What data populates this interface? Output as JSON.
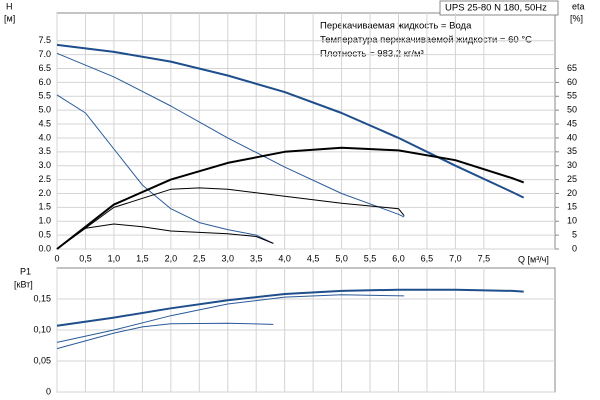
{
  "chart_data": [
    {
      "type": "line",
      "annotations": [
        "UPS 25-80 N 180, 50Hz",
        "Перекачиваемая жидкость = Вода",
        "Температура перекачиваемой жидкости = 60 °C",
        "Плотность = 983.2 кг/м³"
      ],
      "y_label": "H",
      "y_unit": "[м]",
      "y2_label": "eta",
      "y2_unit": "[%]",
      "x_label": "Q [м³/ч]",
      "xlim": [
        0,
        8.75
      ],
      "ylim": [
        0,
        8.5
      ],
      "y2lim": [
        0,
        85
      ],
      "grid": true,
      "xticks": [
        0,
        {
          "value": 0.5,
          "label": "0,5"
        },
        {
          "value": 1,
          "label": "1,0"
        },
        {
          "value": 1.5,
          "label": "1,5"
        },
        {
          "value": 2,
          "label": "2,0"
        },
        {
          "value": 2.5,
          "label": "2,5"
        },
        {
          "value": 3,
          "label": "3,0"
        },
        {
          "value": 3.5,
          "label": "3,5"
        },
        {
          "value": 4,
          "label": "4,0"
        },
        {
          "value": 4.5,
          "label": "4,5"
        },
        {
          "value": 5,
          "label": "5,0"
        },
        {
          "value": 5.5,
          "label": "5,5"
        },
        {
          "value": 6,
          "label": "6,0"
        },
        {
          "value": 6.5,
          "label": "6,5"
        },
        {
          "value": 7,
          "label": "7,0"
        },
        {
          "value": 7.5,
          "label": "7,5"
        }
      ],
      "yticks": [
        {
          "value": 0,
          "label": "0.0"
        },
        0.5,
        {
          "value": 1,
          "label": "1.0"
        },
        1.5,
        {
          "value": 2,
          "label": "2.0"
        },
        2.5,
        {
          "value": 3,
          "label": "3.0"
        },
        3.5,
        {
          "value": 4,
          "label": "4.0"
        },
        4.5,
        {
          "value": 5,
          "label": "5.0"
        },
        5.5,
        {
          "value": 6,
          "label": "6.0"
        },
        6.5,
        {
          "value": 7,
          "label": "7.0"
        },
        7.5
      ],
      "y2ticks": [
        0,
        5,
        10,
        15,
        20,
        25,
        30,
        35,
        40,
        45,
        50,
        55,
        60,
        65
      ],
      "series": [
        {
          "color": "#1f4e8c",
          "width": 2,
          "axis": "y",
          "x": [
            0,
            1,
            2,
            3,
            4,
            5,
            6,
            7,
            8,
            8.2
          ],
          "values": [
            7.35,
            7.1,
            6.75,
            6.25,
            5.65,
            4.9,
            4.0,
            3.0,
            2.05,
            1.85
          ]
        },
        {
          "color": "#2a5a9a",
          "width": 1,
          "axis": "y",
          "x": [
            0,
            1,
            2,
            3,
            4,
            5,
            6,
            6.1
          ],
          "values": [
            7.05,
            6.2,
            5.15,
            4.0,
            2.95,
            2.0,
            1.25,
            1.15
          ]
        },
        {
          "color": "#2a5a9a",
          "width": 1,
          "axis": "y",
          "x": [
            0,
            0.5,
            1,
            1.5,
            2,
            2.5,
            3,
            3.5,
            3.8
          ],
          "values": [
            5.55,
            4.9,
            3.6,
            2.3,
            1.45,
            0.95,
            0.7,
            0.5,
            0.2
          ]
        },
        {
          "color": "#000000",
          "width": 2,
          "axis": "y2",
          "x": [
            0,
            1,
            2,
            3,
            4,
            5,
            6,
            7,
            8,
            8.2
          ],
          "values": [
            0,
            16,
            25,
            31,
            35,
            36.5,
            35.5,
            32,
            25.5,
            24
          ]
        },
        {
          "color": "#000000",
          "width": 1,
          "axis": "y2",
          "x": [
            0,
            1,
            2,
            2.5,
            3,
            4,
            5,
            6,
            6.1
          ],
          "values": [
            0,
            15,
            21.5,
            22,
            21.5,
            19,
            16.5,
            14.5,
            12
          ]
        },
        {
          "color": "#000000",
          "width": 1,
          "axis": "y2",
          "x": [
            0,
            0.5,
            1,
            1.5,
            2,
            3,
            3.5,
            3.8
          ],
          "values": [
            0,
            7.5,
            9,
            8,
            6.5,
            5.5,
            4.5,
            2
          ]
        }
      ]
    },
    {
      "type": "line",
      "y_label": "P1",
      "y_unit": "[кВт]",
      "xlim": [
        0,
        8.75
      ],
      "ylim": [
        0,
        0.2
      ],
      "grid": true,
      "xticks": [
        0,
        0.5,
        1,
        1.5,
        2,
        2.5,
        3,
        3.5,
        4,
        4.5,
        5,
        5.5,
        6,
        6.5,
        7,
        7.5
      ],
      "yticks": [
        0,
        {
          "value": 0.05,
          "label": "0,05"
        },
        {
          "value": 0.1,
          "label": "0,10"
        },
        {
          "value": 0.15,
          "label": "0,15"
        }
      ],
      "series": [
        {
          "color": "#1f4e8c",
          "width": 2,
          "x": [
            0,
            1,
            2,
            3,
            4,
            5,
            6,
            7,
            8,
            8.2
          ],
          "values": [
            0.107,
            0.12,
            0.135,
            0.148,
            0.158,
            0.163,
            0.165,
            0.165,
            0.163,
            0.162
          ]
        },
        {
          "color": "#2a5a9a",
          "width": 1,
          "x": [
            0,
            1,
            2,
            3,
            4,
            5,
            6.1
          ],
          "values": [
            0.08,
            0.1,
            0.123,
            0.142,
            0.153,
            0.157,
            0.155
          ]
        },
        {
          "color": "#2a5a9a",
          "width": 1,
          "x": [
            0,
            1,
            1.5,
            2,
            3,
            3.8
          ],
          "values": [
            0.07,
            0.095,
            0.105,
            0.11,
            0.111,
            0.109
          ]
        }
      ]
    }
  ]
}
